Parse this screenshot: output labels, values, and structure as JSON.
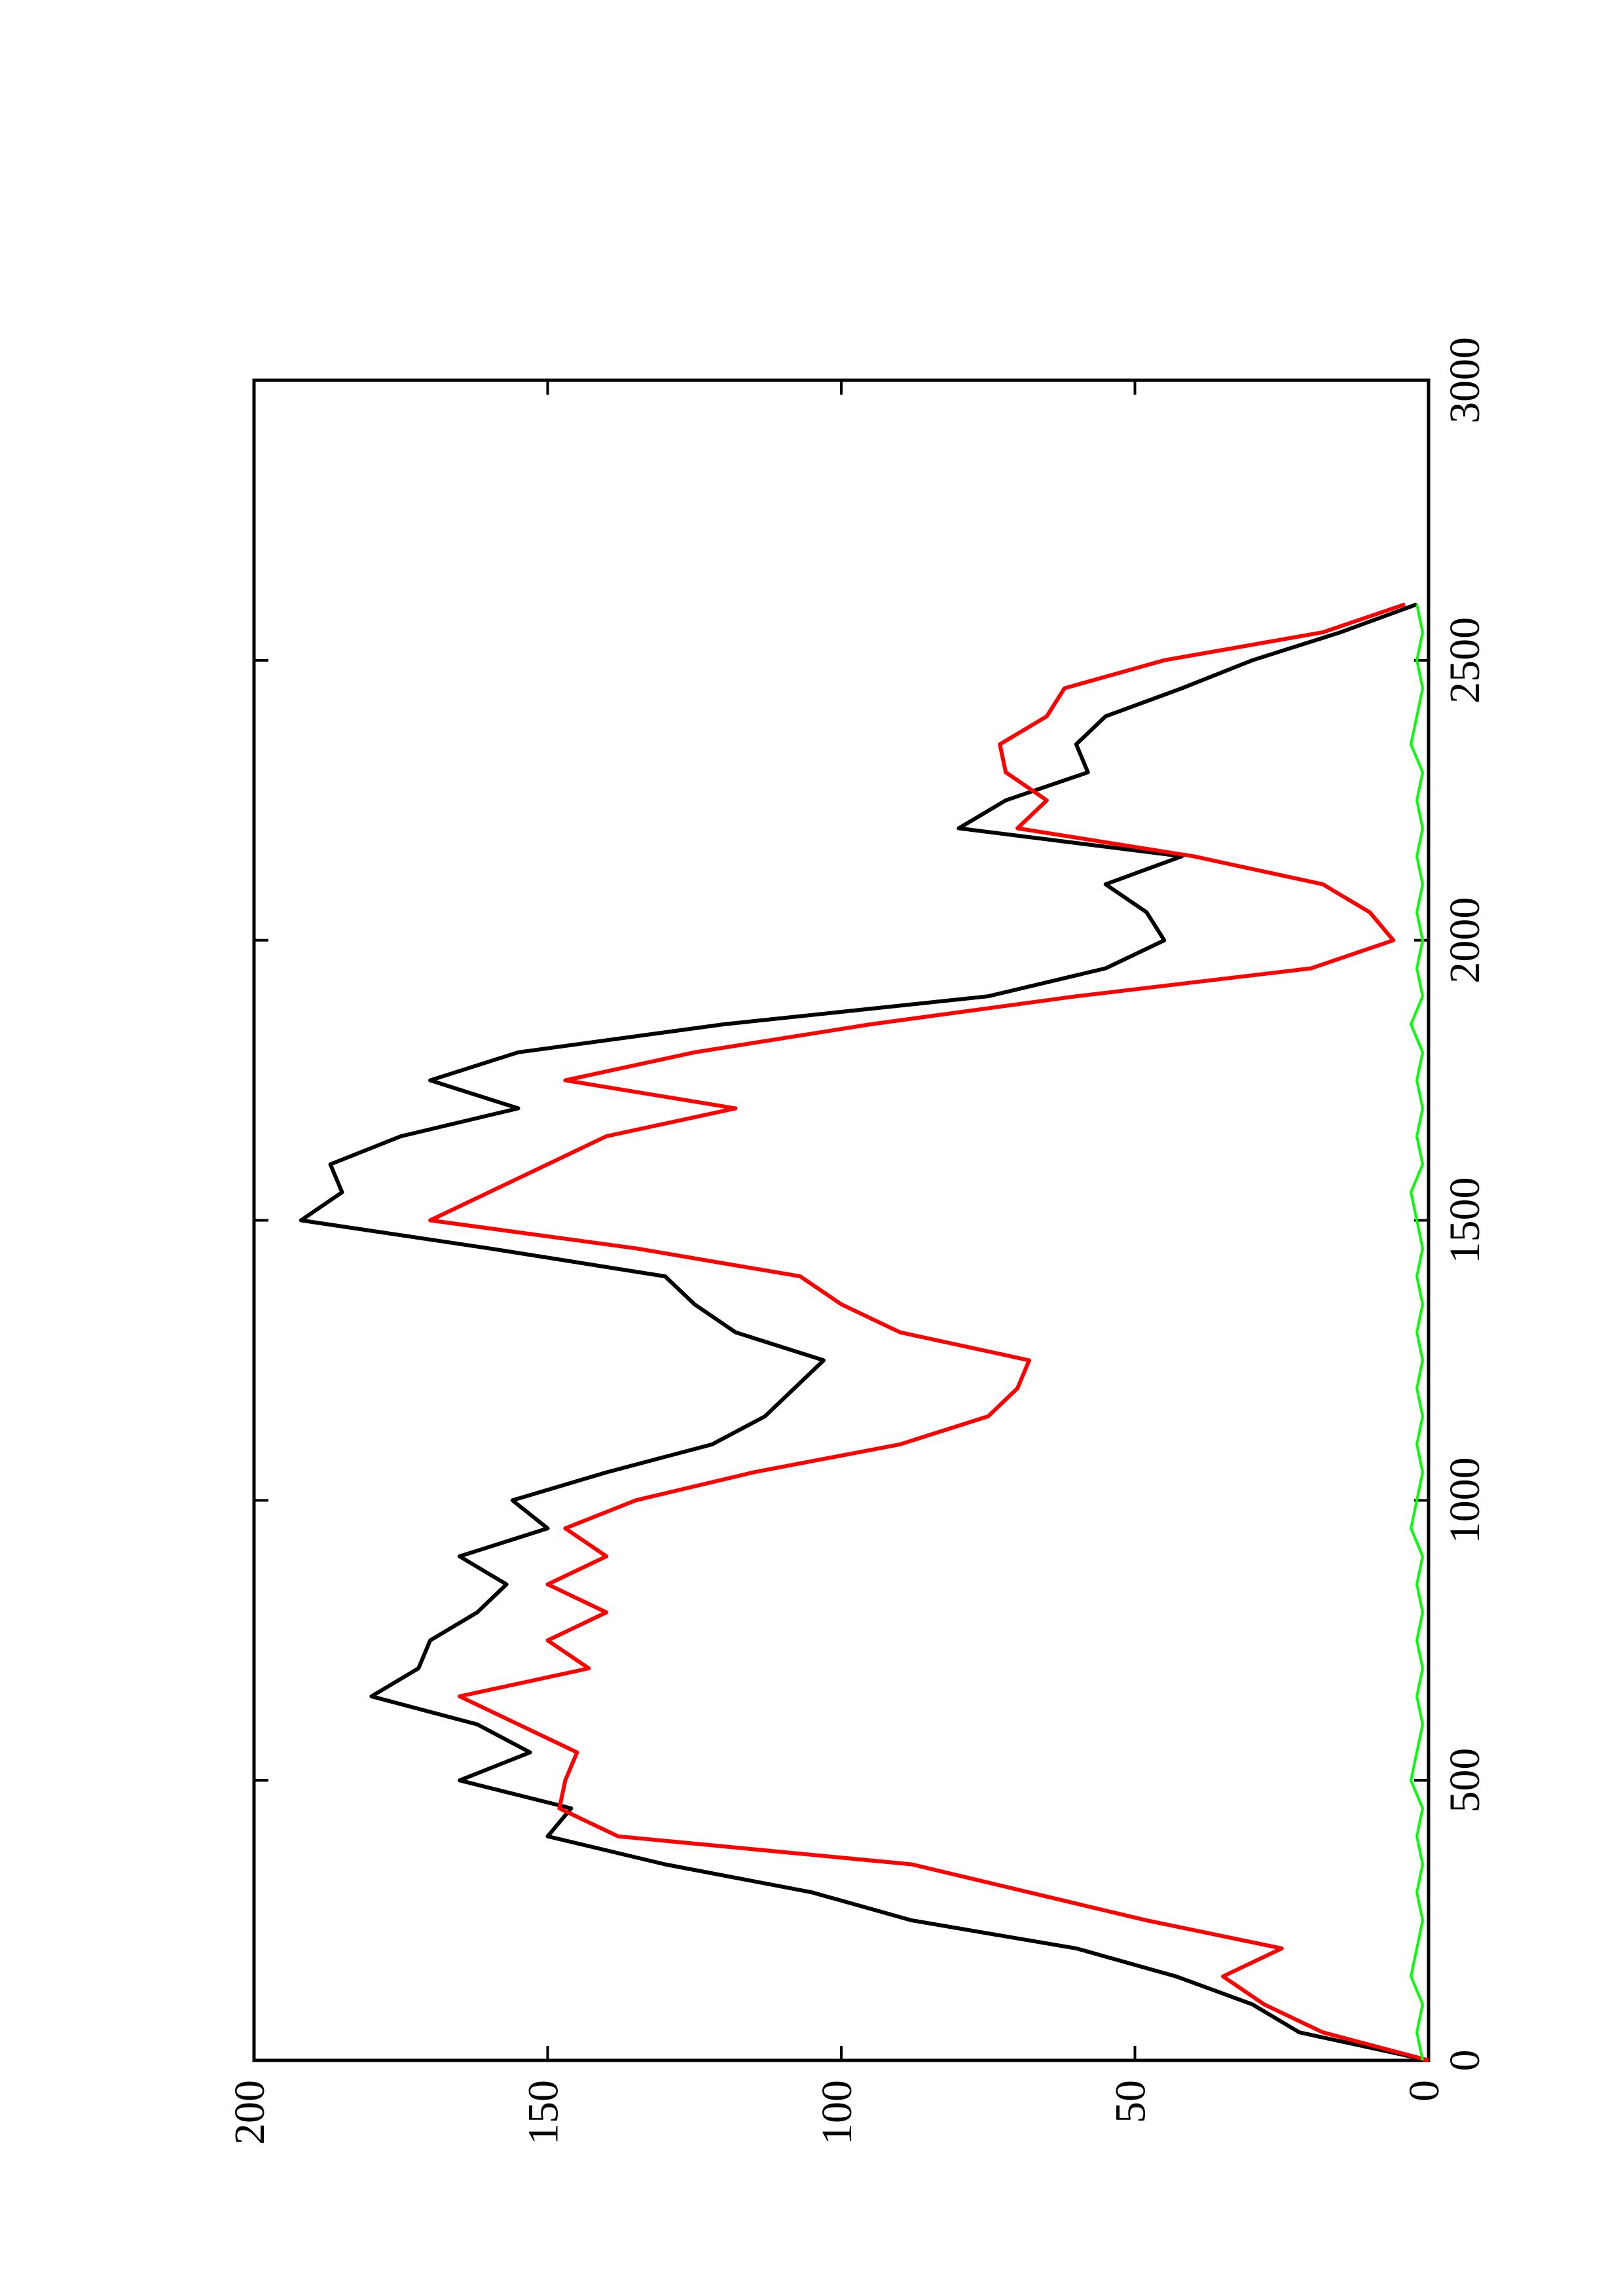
{
  "chart_data": {
    "type": "line",
    "x": [
      0,
      50,
      100,
      150,
      200,
      250,
      300,
      350,
      400,
      450,
      500,
      550,
      600,
      650,
      700,
      750,
      800,
      850,
      900,
      950,
      1000,
      1050,
      1100,
      1150,
      1200,
      1250,
      1300,
      1350,
      1400,
      1450,
      1500,
      1550,
      1600,
      1650,
      1700,
      1750,
      1800,
      1850,
      1900,
      1950,
      2000,
      2050,
      2100,
      2150,
      2200,
      2250,
      2300,
      2350,
      2400,
      2450,
      2500,
      2550,
      2600
    ],
    "series": [
      {
        "color": "#000000",
        "values": [
          0,
          22,
          30,
          43,
          60,
          88,
          105,
          130,
          150,
          146,
          165,
          153,
          162,
          180,
          172,
          170,
          162,
          157,
          165,
          150,
          156,
          140,
          122,
          113,
          108,
          103,
          118,
          125,
          130,
          160,
          192,
          185,
          187,
          175,
          155,
          170,
          155,
          120,
          75,
          55,
          45,
          48,
          55,
          42,
          80,
          72,
          58,
          60,
          55,
          42,
          30,
          15,
          2
        ]
      },
      {
        "color": "#ff0000",
        "values": [
          0,
          18,
          28,
          35,
          25,
          48,
          68,
          88,
          138,
          148,
          147,
          145,
          155,
          165,
          143,
          150,
          140,
          150,
          140,
          147,
          135,
          115,
          90,
          75,
          70,
          68,
          90,
          100,
          107,
          135,
          170,
          160,
          150,
          140,
          118,
          147,
          125,
          95,
          60,
          20,
          6,
          10,
          18,
          40,
          70,
          65,
          72,
          73,
          65,
          62,
          45,
          18,
          4
        ]
      },
      {
        "color": "#00ff00",
        "values": [
          1,
          2,
          1,
          3,
          2,
          1,
          2,
          1,
          2,
          1,
          3,
          2,
          1,
          2,
          1,
          2,
          1,
          2,
          1,
          3,
          2,
          1,
          2,
          1,
          2,
          1,
          2,
          1,
          2,
          1,
          2,
          3,
          1,
          2,
          1,
          2,
          1,
          3,
          1,
          2,
          1,
          2,
          1,
          2,
          1,
          2,
          1,
          3,
          2,
          1,
          2,
          1,
          2
        ]
      }
    ],
    "xlim": [
      0,
      3000
    ],
    "xticks": [
      0,
      500,
      1000,
      1500,
      2000,
      2500,
      3000
    ],
    "ylim": [
      0,
      200
    ],
    "yticks": [
      0,
      50,
      100,
      150,
      200
    ]
  }
}
